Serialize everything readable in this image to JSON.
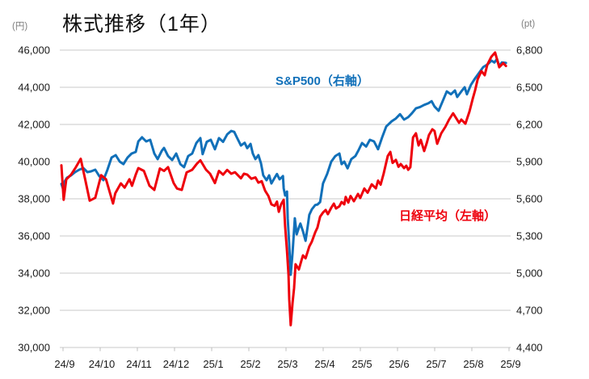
{
  "chart_data": {
    "type": "line",
    "title": "株式推移（1年）",
    "grid": true,
    "legend_position": "inline-labels",
    "x_labels": [
      "24/9",
      "24/10",
      "24/11",
      "24/12",
      "25/1",
      "25/2",
      "25/3",
      "25/4",
      "25/5",
      "25/6",
      "25/7",
      "25/8",
      "25/9"
    ],
    "left_axis": {
      "unit": "(円)",
      "min": 30000,
      "max": 46000,
      "tick_step": 2000,
      "tick_labels": [
        "46,000",
        "44,000",
        "42,000",
        "40,000",
        "38,000",
        "36,000",
        "34,000",
        "32,000",
        "30,000"
      ]
    },
    "right_axis": {
      "unit": "(pt)",
      "min": 4400,
      "max": 6800,
      "tick_step": 300,
      "tick_labels": [
        "6,800",
        "6,500",
        "6,200",
        "5,900",
        "5,600",
        "5,300",
        "5,000",
        "4,700",
        "4,400"
      ]
    },
    "series": [
      {
        "name": "S&P500",
        "axis_note": "（右軸）",
        "axis": "right",
        "color": "#1170b9",
        "id": "sp500-line",
        "points": [
          [
            0,
            5720
          ],
          [
            0.04,
            5685
          ],
          [
            0.09,
            5740
          ],
          [
            0.15,
            5770
          ],
          [
            0.26,
            5790
          ],
          [
            0.37,
            5815
          ],
          [
            0.48,
            5835
          ],
          [
            0.59,
            5848
          ],
          [
            0.7,
            5815
          ],
          [
            0.8,
            5822
          ],
          [
            0.91,
            5835
          ],
          [
            1.02,
            5783
          ],
          [
            1.13,
            5750
          ],
          [
            1.24,
            5835
          ],
          [
            1.35,
            5933
          ],
          [
            1.46,
            5952
          ],
          [
            1.57,
            5900
          ],
          [
            1.67,
            5880
          ],
          [
            1.78,
            5933
          ],
          [
            1.89,
            5965
          ],
          [
            2.0,
            5978
          ],
          [
            2.07,
            6063
          ],
          [
            2.17,
            6096
          ],
          [
            2.28,
            6063
          ],
          [
            2.39,
            6076
          ],
          [
            2.5,
            5965
          ],
          [
            2.59,
            5920
          ],
          [
            2.7,
            5987
          ],
          [
            2.76,
            6010
          ],
          [
            2.87,
            5945
          ],
          [
            2.98,
            5913
          ],
          [
            3.09,
            5965
          ],
          [
            3.2,
            5880
          ],
          [
            3.3,
            5855
          ],
          [
            3.41,
            5945
          ],
          [
            3.52,
            5965
          ],
          [
            3.63,
            6050
          ],
          [
            3.74,
            6090
          ],
          [
            3.8,
            5960
          ],
          [
            3.91,
            6060
          ],
          [
            4.02,
            6076
          ],
          [
            4.13,
            6000
          ],
          [
            4.24,
            6090
          ],
          [
            4.35,
            6060
          ],
          [
            4.46,
            6120
          ],
          [
            4.57,
            6148
          ],
          [
            4.65,
            6140
          ],
          [
            4.72,
            6096
          ],
          [
            4.83,
            6030
          ],
          [
            4.93,
            6052
          ],
          [
            5.0,
            6009
          ],
          [
            5.09,
            6043
          ],
          [
            5.15,
            5965
          ],
          [
            5.22,
            5920
          ],
          [
            5.3,
            5952
          ],
          [
            5.37,
            5887
          ],
          [
            5.43,
            5790
          ],
          [
            5.52,
            5750
          ],
          [
            5.59,
            5790
          ],
          [
            5.65,
            5724
          ],
          [
            5.74,
            5770
          ],
          [
            5.8,
            5800
          ],
          [
            5.87,
            5757
          ],
          [
            5.96,
            5783
          ],
          [
            5.98,
            5685
          ],
          [
            6.02,
            5626
          ],
          [
            6.07,
            5659
          ],
          [
            6.09,
            5443
          ],
          [
            6.13,
            5228
          ],
          [
            6.17,
            4987
          ],
          [
            6.22,
            5163
          ],
          [
            6.28,
            5443
          ],
          [
            6.33,
            5313
          ],
          [
            6.39,
            5367
          ],
          [
            6.43,
            5400
          ],
          [
            6.5,
            5337
          ],
          [
            6.57,
            5261
          ],
          [
            6.63,
            5385
          ],
          [
            6.67,
            5470
          ],
          [
            6.74,
            5515
          ],
          [
            6.83,
            5550
          ],
          [
            6.89,
            5554
          ],
          [
            6.96,
            5574
          ],
          [
            7.04,
            5724
          ],
          [
            7.15,
            5800
          ],
          [
            7.26,
            5900
          ],
          [
            7.37,
            5945
          ],
          [
            7.48,
            5965
          ],
          [
            7.54,
            5880
          ],
          [
            7.61,
            5900
          ],
          [
            7.7,
            5846
          ],
          [
            7.8,
            5920
          ],
          [
            7.91,
            5945
          ],
          [
            8.0,
            5995
          ],
          [
            8.09,
            6050
          ],
          [
            8.2,
            6022
          ],
          [
            8.3,
            6076
          ],
          [
            8.41,
            6063
          ],
          [
            8.52,
            6000
          ],
          [
            8.63,
            6096
          ],
          [
            8.74,
            6183
          ],
          [
            8.89,
            6226
          ],
          [
            9.0,
            6248
          ],
          [
            9.11,
            6283
          ],
          [
            9.22,
            6239
          ],
          [
            9.33,
            6259
          ],
          [
            9.43,
            6290
          ],
          [
            9.54,
            6330
          ],
          [
            9.65,
            6341
          ],
          [
            9.76,
            6358
          ],
          [
            9.87,
            6370
          ],
          [
            9.96,
            6388
          ],
          [
            10.04,
            6345
          ],
          [
            10.15,
            6310
          ],
          [
            10.26,
            6390
          ],
          [
            10.37,
            6467
          ],
          [
            10.48,
            6443
          ],
          [
            10.59,
            6474
          ],
          [
            10.65,
            6422
          ],
          [
            10.76,
            6467
          ],
          [
            10.85,
            6500
          ],
          [
            10.91,
            6443
          ],
          [
            11.02,
            6520
          ],
          [
            11.13,
            6572
          ],
          [
            11.24,
            6617
          ],
          [
            11.35,
            6663
          ],
          [
            11.46,
            6683
          ],
          [
            11.57,
            6715
          ],
          [
            11.65,
            6700
          ],
          [
            11.72,
            6728
          ],
          [
            11.78,
            6670
          ],
          [
            11.85,
            6700
          ],
          [
            11.96,
            6696
          ]
        ]
      },
      {
        "name": "日経平均",
        "axis_note": "（左軸）",
        "axis": "left",
        "color": "#ee000c",
        "id": "nikkei-line",
        "points": [
          [
            0,
            39800
          ],
          [
            0.06,
            37950
          ],
          [
            0.13,
            39040
          ],
          [
            0.26,
            39300
          ],
          [
            0.39,
            39700
          ],
          [
            0.52,
            40150
          ],
          [
            0.63,
            39130
          ],
          [
            0.76,
            37900
          ],
          [
            0.91,
            38050
          ],
          [
            1.07,
            39270
          ],
          [
            1.2,
            39050
          ],
          [
            1.39,
            37750
          ],
          [
            1.45,
            38300
          ],
          [
            1.6,
            38830
          ],
          [
            1.7,
            38600
          ],
          [
            1.83,
            39050
          ],
          [
            1.9,
            38700
          ],
          [
            2.0,
            39300
          ],
          [
            2.07,
            39650
          ],
          [
            2.22,
            39500
          ],
          [
            2.37,
            38700
          ],
          [
            2.5,
            38480
          ],
          [
            2.65,
            39630
          ],
          [
            2.76,
            39500
          ],
          [
            2.87,
            39700
          ],
          [
            3.02,
            38850
          ],
          [
            3.11,
            38550
          ],
          [
            3.24,
            38480
          ],
          [
            3.37,
            39420
          ],
          [
            3.52,
            39560
          ],
          [
            3.65,
            39900
          ],
          [
            3.74,
            40070
          ],
          [
            3.89,
            39570
          ],
          [
            4.0,
            39350
          ],
          [
            4.13,
            38850
          ],
          [
            4.24,
            39500
          ],
          [
            4.35,
            39300
          ],
          [
            4.46,
            39550
          ],
          [
            4.57,
            39350
          ],
          [
            4.67,
            39430
          ],
          [
            4.83,
            39100
          ],
          [
            4.91,
            39350
          ],
          [
            5.0,
            39300
          ],
          [
            5.11,
            39080
          ],
          [
            5.22,
            39150
          ],
          [
            5.3,
            38870
          ],
          [
            5.39,
            38950
          ],
          [
            5.48,
            38440
          ],
          [
            5.57,
            38150
          ],
          [
            5.65,
            37700
          ],
          [
            5.74,
            37620
          ],
          [
            5.8,
            37850
          ],
          [
            5.85,
            37300
          ],
          [
            5.91,
            37700
          ],
          [
            5.98,
            37950
          ],
          [
            6.02,
            36520
          ],
          [
            6.07,
            35200
          ],
          [
            6.11,
            33900
          ],
          [
            6.13,
            32600
          ],
          [
            6.17,
            31200
          ],
          [
            6.22,
            32400
          ],
          [
            6.26,
            33200
          ],
          [
            6.3,
            34480
          ],
          [
            6.39,
            34200
          ],
          [
            6.46,
            34700
          ],
          [
            6.5,
            34950
          ],
          [
            6.57,
            34800
          ],
          [
            6.67,
            35430
          ],
          [
            6.74,
            35700
          ],
          [
            6.83,
            36200
          ],
          [
            6.89,
            36450
          ],
          [
            6.96,
            37040
          ],
          [
            7.04,
            37260
          ],
          [
            7.11,
            37400
          ],
          [
            7.17,
            37170
          ],
          [
            7.26,
            37520
          ],
          [
            7.33,
            37740
          ],
          [
            7.39,
            37480
          ],
          [
            7.48,
            37600
          ],
          [
            7.54,
            37830
          ],
          [
            7.61,
            37700
          ],
          [
            7.65,
            38100
          ],
          [
            7.72,
            37800
          ],
          [
            7.78,
            38150
          ],
          [
            7.87,
            37870
          ],
          [
            7.98,
            38260
          ],
          [
            8.04,
            38040
          ],
          [
            8.15,
            38550
          ],
          [
            8.24,
            38330
          ],
          [
            8.35,
            38780
          ],
          [
            8.46,
            38560
          ],
          [
            8.52,
            38980
          ],
          [
            8.59,
            38760
          ],
          [
            8.67,
            39350
          ],
          [
            8.78,
            40300
          ],
          [
            8.85,
            40520
          ],
          [
            8.91,
            39930
          ],
          [
            9.0,
            40090
          ],
          [
            9.07,
            39720
          ],
          [
            9.13,
            39870
          ],
          [
            9.22,
            39650
          ],
          [
            9.28,
            39780
          ],
          [
            9.33,
            39560
          ],
          [
            9.39,
            39700
          ],
          [
            9.46,
            41300
          ],
          [
            9.54,
            41520
          ],
          [
            9.61,
            40870
          ],
          [
            9.67,
            41170
          ],
          [
            9.76,
            40570
          ],
          [
            9.83,
            41000
          ],
          [
            9.89,
            41430
          ],
          [
            9.98,
            41740
          ],
          [
            10.04,
            41650
          ],
          [
            10.11,
            40960
          ],
          [
            10.22,
            41520
          ],
          [
            10.33,
            41870
          ],
          [
            10.43,
            42260
          ],
          [
            10.54,
            42600
          ],
          [
            10.7,
            42090
          ],
          [
            10.76,
            42260
          ],
          [
            10.87,
            42040
          ],
          [
            10.98,
            42700
          ],
          [
            11.07,
            43400
          ],
          [
            11.13,
            43830
          ],
          [
            11.2,
            44430
          ],
          [
            11.3,
            44870
          ],
          [
            11.39,
            44650
          ],
          [
            11.46,
            45220
          ],
          [
            11.57,
            45650
          ],
          [
            11.67,
            45870
          ],
          [
            11.78,
            45080
          ],
          [
            11.89,
            45300
          ],
          [
            11.96,
            45150
          ]
        ]
      }
    ],
    "style": {
      "gridline_color": "#c9c9c9",
      "axis_tick_color": "#bdbdbd",
      "tick_label_color": "#1a1a1a",
      "unit_label_color": "#7f7f7f",
      "line_width": 3
    }
  }
}
